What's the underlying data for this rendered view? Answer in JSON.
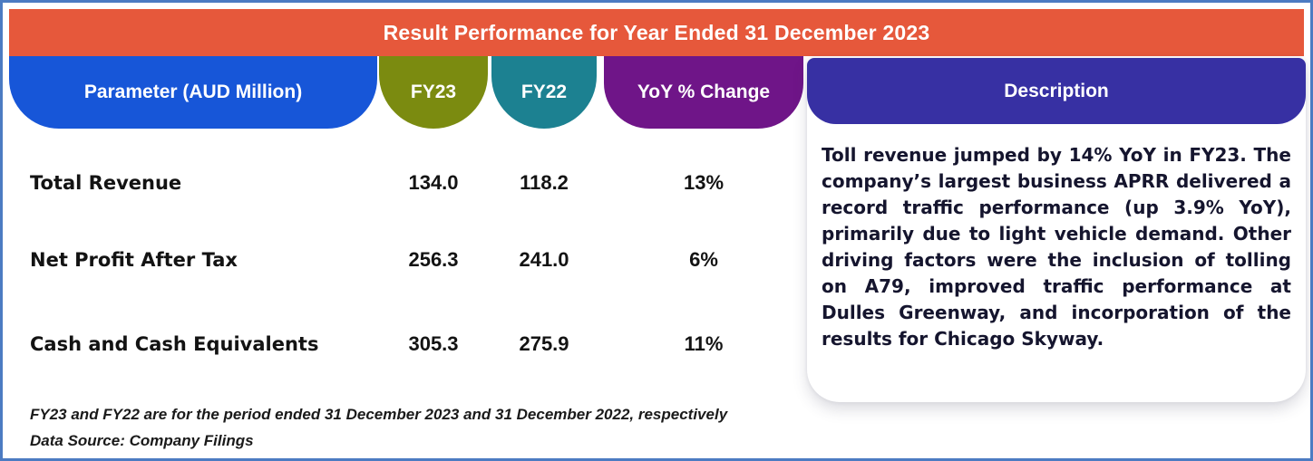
{
  "header": {
    "title": "Result Performance for Year Ended 31 December 2023"
  },
  "chart_data": {
    "type": "table",
    "title": "Result Performance for Year Ended 31 December 2023",
    "units": "AUD Million",
    "columns": [
      "Parameter (AUD Million)",
      "FY23",
      "FY22",
      "YoY % Change"
    ],
    "rows": [
      [
        "Total Revenue",
        "134.0",
        "118.2",
        "13%"
      ],
      [
        "Net Profit After Tax",
        "256.3",
        "241.0",
        "6%"
      ],
      [
        "Cash and Cash Equivalents",
        "305.3",
        "275.9",
        "11%"
      ]
    ]
  },
  "description": {
    "header": "Description",
    "body": "Toll revenue jumped by 14% YoY in FY23. The company’s largest business APRR delivered a record traffic performance (up 3.9% YoY), primarily due to light vehicle demand. Other driving factors were the inclusion of tolling on A79, improved traffic performance at Dulles Greenway, and incorporation of the results for Chicago Skyway."
  },
  "footnotes": {
    "note1": "FY23 and FY22 are for the period ended 31 December 2023 and 31 December 2022, respectively",
    "note2": "Data Source: Company Filings"
  },
  "colors": {
    "banner": "#E6583B",
    "parameter_pill": "#1756D8",
    "fy23_pill": "#7B8B10",
    "fy22_pill": "#1C8191",
    "yoy_pill": "#6F1588",
    "description_pill": "#3730A3",
    "outer_border": "#4C7BC2",
    "body_text": "#131313"
  }
}
